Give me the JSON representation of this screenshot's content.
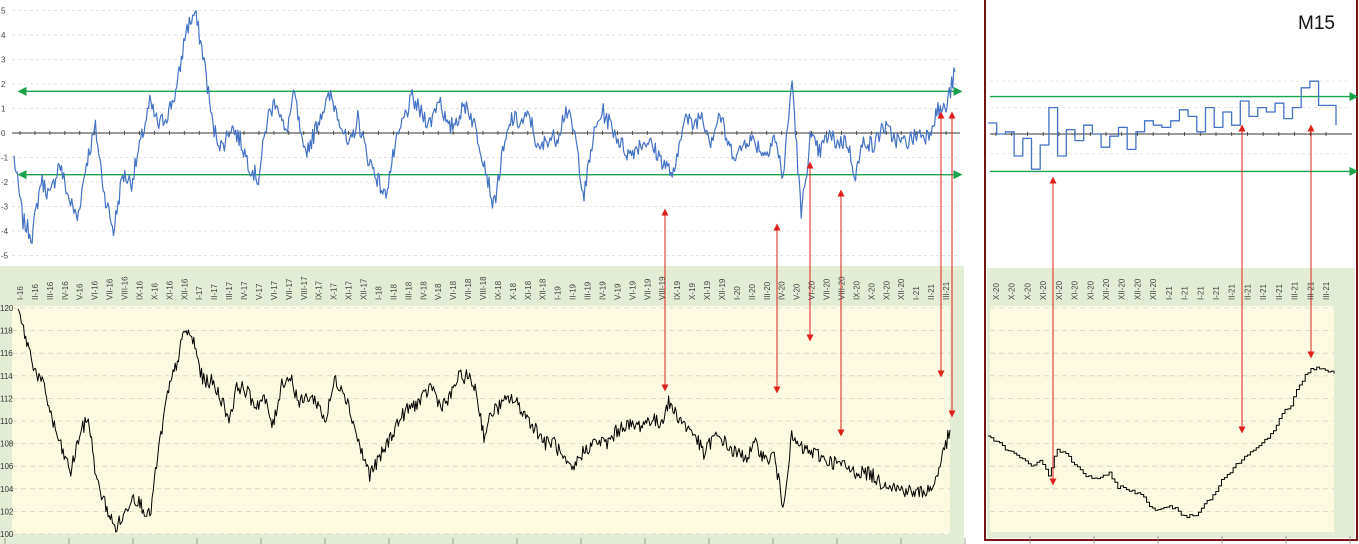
{
  "chart_data": [
    {
      "type": "line",
      "panel": "left",
      "title": "",
      "xlabel": "",
      "ylabel": "",
      "months": [
        "I-16",
        "II-16",
        "III-16",
        "IV-16",
        "V-16",
        "VI-16",
        "VII-16",
        "VIII-16",
        "IX-16",
        "X-16",
        "XI-16",
        "XII-16",
        "I-17",
        "II-17",
        "III-17",
        "IV-17",
        "V-17",
        "VI-17",
        "VII-17",
        "VIII-17",
        "IX-17",
        "X-17",
        "XI-17",
        "XII-17",
        "I-18",
        "II-18",
        "III-18",
        "IV-18",
        "V-18",
        "VI-18",
        "VII-18",
        "VIII-18",
        "IX-18",
        "X-18",
        "XI-18",
        "XII-18",
        "I-19",
        "II-19",
        "III-19",
        "IV-19",
        "V-19",
        "VI-19",
        "VII-19",
        "VIII-19",
        "IX-19",
        "X-19",
        "XI-19",
        "XII-19",
        "I-20",
        "II-20",
        "III-20",
        "IV-20",
        "V-20",
        "VI-20",
        "VII-20",
        "VIII-20",
        "IX-20",
        "X-20",
        "XI-20",
        "XII-20",
        "I-21",
        "II-21",
        "III-21"
      ],
      "oscillator": {
        "color": "#4472c4",
        "ylim": [
          -5,
          5
        ],
        "yticks": [
          "5",
          "4",
          "3",
          "2",
          "1",
          "0",
          "-1",
          "-2",
          "-3",
          "-4",
          "-5"
        ],
        "levels": [
          1.7,
          -1.7
        ],
        "level_color": "#1aa34a",
        "values": [
          -1.0,
          -3.6,
          -4.2,
          -1.9,
          -2.6,
          -1.2,
          -2.6,
          -3.5,
          -1.2,
          0.2,
          -2.5,
          -4.0,
          -1.7,
          -2.0,
          -0.4,
          1.2,
          0.3,
          0.8,
          1.8,
          4.2,
          4.9,
          3.0,
          0.2,
          -0.6,
          0.3,
          -0.3,
          -1.3,
          -1.9,
          0.6,
          1.4,
          -0.1,
          1.6,
          -0.9,
          -0.2,
          0.9,
          1.5,
          0.6,
          -0.7,
          0.6,
          -0.9,
          -1.7,
          -2.6,
          -0.8,
          0.5,
          1.4,
          0.8,
          0.4,
          1.5,
          0.1,
          0.6,
          1.2,
          0.2,
          -1.2,
          -3.0,
          -0.9,
          0.6,
          0.4,
          0.7,
          -0.8,
          -0.2,
          -0.2,
          1.0,
          -0.1,
          -2.6,
          -0.2,
          0.9,
          0.3,
          -0.4,
          -0.9,
          -0.5,
          -0.3,
          -0.8,
          -1.3,
          -1.8,
          0.7,
          0.3,
          0.8,
          -0.3,
          0.8,
          -0.6,
          -0.9,
          -0.2,
          -0.4,
          -0.9,
          -0.1,
          -1.8,
          2.2,
          -3.4,
          -0.2,
          -0.8,
          -0.1,
          -0.4,
          -0.3,
          -1.7,
          -0.2,
          -0.6,
          0.3,
          -0.1,
          -0.4,
          -0.3,
          0.0,
          -0.1,
          0.9,
          1.0,
          2.5
        ]
      },
      "price": {
        "color": "#000000",
        "ylim": [
          100,
          120
        ],
        "yticks": [
          "120",
          "118",
          "116",
          "114",
          "112",
          "110",
          "108",
          "106",
          "104",
          "102",
          "100"
        ],
        "values": [
          119.8,
          117.0,
          114.4,
          112.9,
          109.8,
          107.4,
          105.5,
          108.8,
          110.3,
          104.5,
          102.5,
          100.5,
          101.5,
          103.5,
          102.6,
          101.5,
          107.5,
          112.3,
          115.0,
          118.1,
          117.0,
          113.6,
          113.5,
          112.2,
          110.2,
          113.2,
          112.6,
          111.4,
          112.0,
          109.5,
          113.4,
          113.9,
          111.5,
          112.2,
          111.7,
          110.0,
          113.6,
          112.9,
          110.3,
          107.4,
          105.3,
          106.5,
          108.0,
          109.6,
          110.8,
          111.4,
          111.9,
          113.2,
          111.4,
          111.8,
          113.8,
          114.0,
          113.0,
          108.7,
          110.9,
          111.4,
          112.1,
          111.3,
          110.2,
          109.2,
          108.0,
          108.2,
          106.5,
          105.5,
          107.0,
          107.8,
          108.2,
          108.0,
          109.0,
          109.7,
          109.5,
          109.7,
          110.2,
          109.7,
          111.6,
          110.5,
          109.5,
          108.8,
          107.0,
          108.5,
          108.5,
          107.5,
          107.0,
          106.9,
          108.0,
          106.5,
          107.0,
          102.5,
          108.5,
          107.6,
          107.3,
          107.0,
          106.5,
          106.3,
          106.0,
          105.5,
          105.5,
          105.3,
          104.6,
          104.5,
          104.0,
          103.9,
          103.6,
          103.8,
          104.0,
          106.5,
          109.2
        ]
      }
    },
    {
      "type": "line",
      "panel": "right",
      "title": "M15",
      "xlabel": "",
      "ylabel": "",
      "months": [
        "X-20",
        "X-20",
        "X-20",
        "XI-20",
        "XI-20",
        "XI-20",
        "XI-20",
        "XII-20",
        "XII-20",
        "XII-20",
        "XII-20",
        "I-21",
        "I-21",
        "I-21",
        "I-21",
        "II-21",
        "II-21",
        "II-21",
        "II-21",
        "III-21",
        "III-21",
        "III-21"
      ],
      "oscillator": {
        "color": "#4472c4",
        "levels": [
          1.7,
          -1.7
        ],
        "level_color": "#1aa34a",
        "values": [
          0.5,
          0.0,
          0.1,
          -1.0,
          -0.2,
          -1.6,
          -0.5,
          1.2,
          -1.0,
          0.2,
          -0.3,
          0.4,
          0.0,
          -0.6,
          -0.1,
          0.3,
          -0.7,
          0.1,
          0.6,
          0.4,
          0.3,
          0.6,
          1.1,
          0.8,
          0.1,
          1.2,
          0.3,
          1.0,
          0.4,
          1.5,
          0.8,
          1.2,
          1.0,
          1.4,
          0.7,
          1.2,
          2.1,
          2.4,
          1.3,
          1.3,
          0.4
        ]
      },
      "price": {
        "color": "#000000",
        "values": [
          108.5,
          108.2,
          107.5,
          107.2,
          106.5,
          106.0,
          106.6,
          105.2,
          107.5,
          107.0,
          106.2,
          105.3,
          105.0,
          104.9,
          105.3,
          104.2,
          104.0,
          103.7,
          103.2,
          102.3,
          102.1,
          102.5,
          102.0,
          101.5,
          101.8,
          102.6,
          103.5,
          104.8,
          105.5,
          106.4,
          107.0,
          107.8,
          108.3,
          109.0,
          110.6,
          111.5,
          113.2,
          114.4,
          114.8,
          114.5,
          114.2
        ]
      }
    }
  ]
}
